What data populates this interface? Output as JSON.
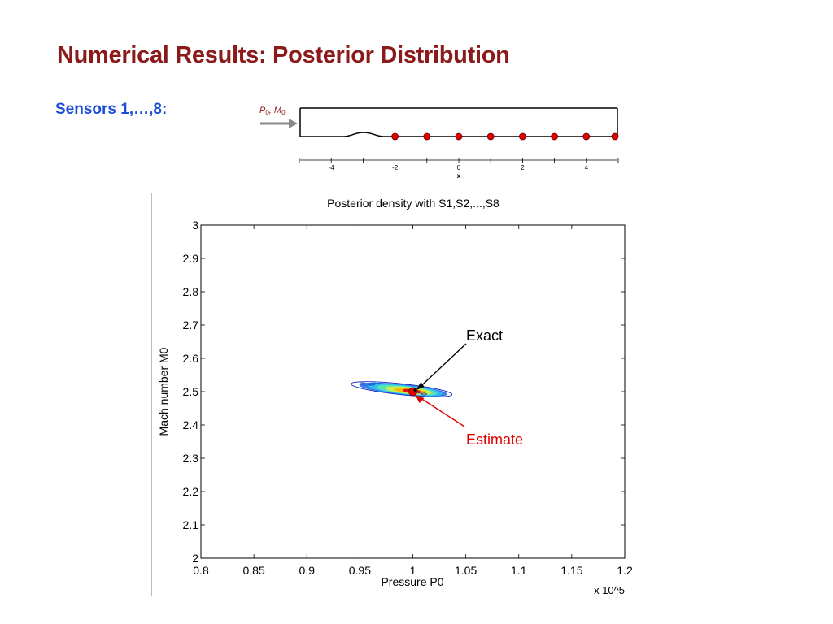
{
  "slide": {
    "title": "Numerical Results: Posterior Distribution",
    "sensors_label": "Sensors 1,…,8:"
  },
  "diagram": {
    "inlet_label": "P0, M0",
    "inlet_label_main": [
      "P",
      "M"
    ],
    "inlet_label_sub": "0",
    "x_axis_label": "x",
    "x_ticks": [
      -4,
      -2,
      0,
      2,
      4
    ],
    "sensor_positions": [
      -2,
      -1,
      0,
      1,
      2,
      3,
      4,
      5
    ],
    "sensor_color": "#e00000"
  },
  "chart_data": {
    "type": "heatmap",
    "title": "Posterior density with S1,S2,...,S8",
    "xlabel": "Pressure P0",
    "ylabel": "Mach number M0",
    "x_multiplier": "x 10^5",
    "xlim": [
      0.8,
      1.2
    ],
    "ylim": [
      2.0,
      3.0
    ],
    "xticks": [
      0.8,
      0.85,
      0.9,
      0.95,
      1.0,
      1.05,
      1.1,
      1.15,
      1.2
    ],
    "xtick_labels": [
      "0.8",
      "0.85",
      "0.9",
      "0.95",
      "1",
      "1.05",
      "1.1",
      "1.15",
      "1.2"
    ],
    "yticks": [
      2.0,
      2.1,
      2.2,
      2.3,
      2.4,
      2.5,
      2.6,
      2.7,
      2.8,
      2.9,
      3.0
    ],
    "ytick_labels": [
      "2",
      "2.1",
      "2.2",
      "2.3",
      "2.4",
      "2.5",
      "2.6",
      "2.7",
      "2.8",
      "2.9",
      "3"
    ],
    "posterior_mode": {
      "x": 1.0,
      "y": 2.5
    },
    "posterior_spread": {
      "x": 0.03,
      "y": 0.012
    },
    "exact": {
      "x": 1.0,
      "y": 2.5
    },
    "estimate": {
      "x": 1.0,
      "y": 2.5
    },
    "annotations": [
      {
        "label": "Exact",
        "color": "#000000"
      },
      {
        "label": "Estimate",
        "color": "#e00000"
      }
    ],
    "colormap": [
      "#1020c0",
      "#1f6fe6",
      "#2ec6ef",
      "#63e8b0",
      "#d8f03c",
      "#ffb000",
      "#e00000"
    ],
    "grid": false
  }
}
